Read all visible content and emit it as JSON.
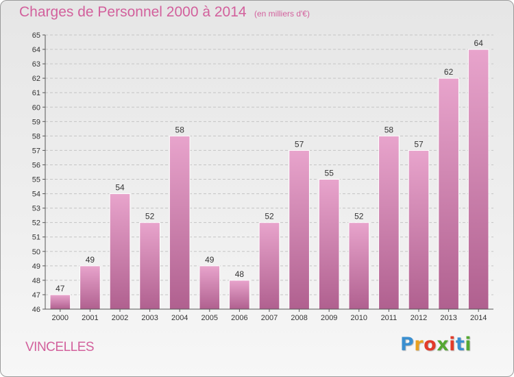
{
  "header": {
    "title": "Charges de Personnel 2000 à 2014",
    "subtitle": "(en milliers d'€)"
  },
  "footer": {
    "commune": "VINCELLES",
    "logo_text": "Proxiti",
    "logo_colors": [
      "#3a8fd0",
      "#e8a020",
      "#e23b2a",
      "#55a832",
      "#e23b2a",
      "#3a8fd0",
      "#55a832"
    ]
  },
  "colors": {
    "title": "#d2609c",
    "bar_top": "#e8a4cc",
    "bar_bottom": "#b0608f",
    "axis": "#555555"
  },
  "chart_data": {
    "type": "bar",
    "title": "Charges de Personnel 2000 à 2014",
    "subtitle": "(en milliers d'€)",
    "categories": [
      "2000",
      "2001",
      "2002",
      "2003",
      "2004",
      "2005",
      "2006",
      "2007",
      "2008",
      "2009",
      "2010",
      "2011",
      "2012",
      "2013",
      "2014"
    ],
    "values": [
      47,
      49,
      54,
      52,
      58,
      49,
      48,
      52,
      57,
      55,
      52,
      58,
      57,
      62,
      64
    ],
    "ylim": [
      46,
      65
    ],
    "yticks": [
      46,
      47,
      48,
      49,
      50,
      51,
      52,
      53,
      54,
      55,
      56,
      57,
      58,
      59,
      60,
      61,
      62,
      63,
      64,
      65
    ],
    "grid": true,
    "data_labels": true
  }
}
